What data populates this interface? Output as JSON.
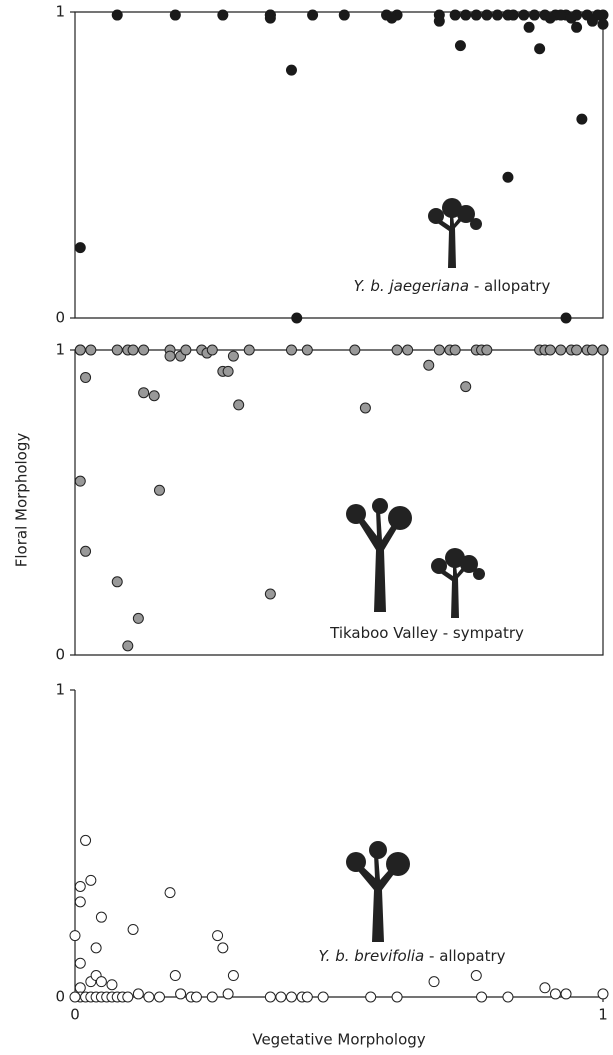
{
  "chart_data": [
    {
      "type": "scatter",
      "color": "#1a1a1a",
      "edgecolor": "#1a1a1a",
      "annotation": {
        "italic": "Y. b. jaegeriana",
        "text": "- allopatry"
      },
      "xlim": [
        0,
        1
      ],
      "ylim": [
        0,
        1
      ],
      "yticks": [
        0,
        1
      ],
      "xticks": [],
      "x": [
        0.01,
        0.08,
        0.19,
        0.28,
        0.37,
        0.37,
        0.37,
        0.45,
        0.51,
        0.59,
        0.61,
        0.6,
        0.41,
        0.42,
        0.69,
        0.69,
        0.72,
        0.74,
        0.76,
        0.78,
        0.8,
        0.82,
        0.83,
        0.85,
        0.87,
        0.89,
        0.91,
        0.93,
        0.95,
        0.97,
        0.99,
        1.0,
        0.73,
        0.82,
        0.88,
        0.86,
        0.96,
        0.93,
        0.9,
        0.95,
        0.98,
        1.0,
        0.92,
        0.94
      ],
      "y": [
        0.23,
        0.99,
        0.99,
        0.99,
        0.99,
        0.98,
        0.99,
        0.99,
        0.99,
        0.99,
        0.99,
        0.98,
        0.81,
        0,
        0.99,
        0.97,
        0.99,
        0.99,
        0.99,
        0.99,
        0.99,
        0.99,
        0.99,
        0.99,
        0.99,
        0.99,
        0.99,
        0.99,
        0.99,
        0.99,
        0.99,
        0.99,
        0.89,
        0.46,
        0.88,
        0.95,
        0.65,
        0,
        0.98,
        0.95,
        0.97,
        0.96,
        0.99,
        0.98
      ]
    },
    {
      "type": "scatter",
      "color": "#999999",
      "edgecolor": "#222222",
      "annotation": {
        "italic": "",
        "text": "Tikaboo Valley - sympatry"
      },
      "y_label": "Floral Morphology",
      "xlim": [
        0,
        1
      ],
      "ylim": [
        0,
        1
      ],
      "yticks": [
        0,
        1
      ],
      "xticks": [],
      "x": [
        0.01,
        0.01,
        0.03,
        0.02,
        0.01,
        0.02,
        0.08,
        0.1,
        0.12,
        0.13,
        0.15,
        0.16,
        0.08,
        0.1,
        0.11,
        0.13,
        0.18,
        0.18,
        0.2,
        0.21,
        0.24,
        0.25,
        0.26,
        0.28,
        0.29,
        0.3,
        0.31,
        0.33,
        0.37,
        0.41,
        0.44,
        0.53,
        0.55,
        0.61,
        0.63,
        0.67,
        0.69,
        0.71,
        0.72,
        0.74,
        0.76,
        0.77,
        0.78,
        0.88,
        0.89,
        0.9,
        0.92,
        0.94,
        0.95,
        0.97,
        0.98,
        1.0,
        1.0
      ],
      "y": [
        1.0,
        1.0,
        1.0,
        0.91,
        0.57,
        0.34,
        0.24,
        0.03,
        0.12,
        0.86,
        0.85,
        0.54,
        1.0,
        1.0,
        1.0,
        1.0,
        1.0,
        0.98,
        0.98,
        1.0,
        1.0,
        0.99,
        1.0,
        0.93,
        0.93,
        0.98,
        0.82,
        1.0,
        0.2,
        1.0,
        1.0,
        1.0,
        0.81,
        1.0,
        1.0,
        0.95,
        1.0,
        1.0,
        1.0,
        0.88,
        1.0,
        1.0,
        1.0,
        1.0,
        1.0,
        1.0,
        1.0,
        1.0,
        1.0,
        1.0,
        1.0,
        1.0,
        1.0
      ]
    },
    {
      "type": "scatter",
      "color": "#ffffff",
      "edgecolor": "#222222",
      "annotation": {
        "italic": "Y. b. brevifolia",
        "text": "- allopatry"
      },
      "x_label": "Vegetative Morphology",
      "xlim": [
        0,
        1
      ],
      "ylim": [
        0,
        1
      ],
      "yticks": [
        0,
        1
      ],
      "xticks": [
        0,
        1
      ],
      "x": [
        0.01,
        0.01,
        0.0,
        0.02,
        0.03,
        0.05,
        0.04,
        0.01,
        0.01,
        0.01,
        0.0,
        0.02,
        0.03,
        0.04,
        0.05,
        0.06,
        0.07,
        0.08,
        0.09,
        0.1,
        0.03,
        0.04,
        0.05,
        0.07,
        0.11,
        0.12,
        0.14,
        0.16,
        0.18,
        0.19,
        0.2,
        0.22,
        0.23,
        0.26,
        0.27,
        0.28,
        0.29,
        0.3,
        0.37,
        0.39,
        0.41,
        0.43,
        0.44,
        0.47,
        0.56,
        0.61,
        0.68,
        0.76,
        0.77,
        0.82,
        0.89,
        0.91,
        0.93,
        1.0
      ],
      "y": [
        0.36,
        0.31,
        0.2,
        0.51,
        0.38,
        0.26,
        0.16,
        0.11,
        0.03,
        0,
        0,
        0,
        0,
        0,
        0,
        0,
        0,
        0,
        0,
        0,
        0.05,
        0.07,
        0.05,
        0.04,
        0.22,
        0.01,
        0,
        0,
        0.34,
        0.07,
        0.01,
        0,
        0,
        0,
        0.2,
        0.16,
        0.01,
        0.07,
        0,
        0,
        0,
        0,
        0,
        0,
        0,
        0,
        0.05,
        0.07,
        0,
        0,
        0.03,
        0.01,
        0.01,
        0.01
      ]
    }
  ]
}
